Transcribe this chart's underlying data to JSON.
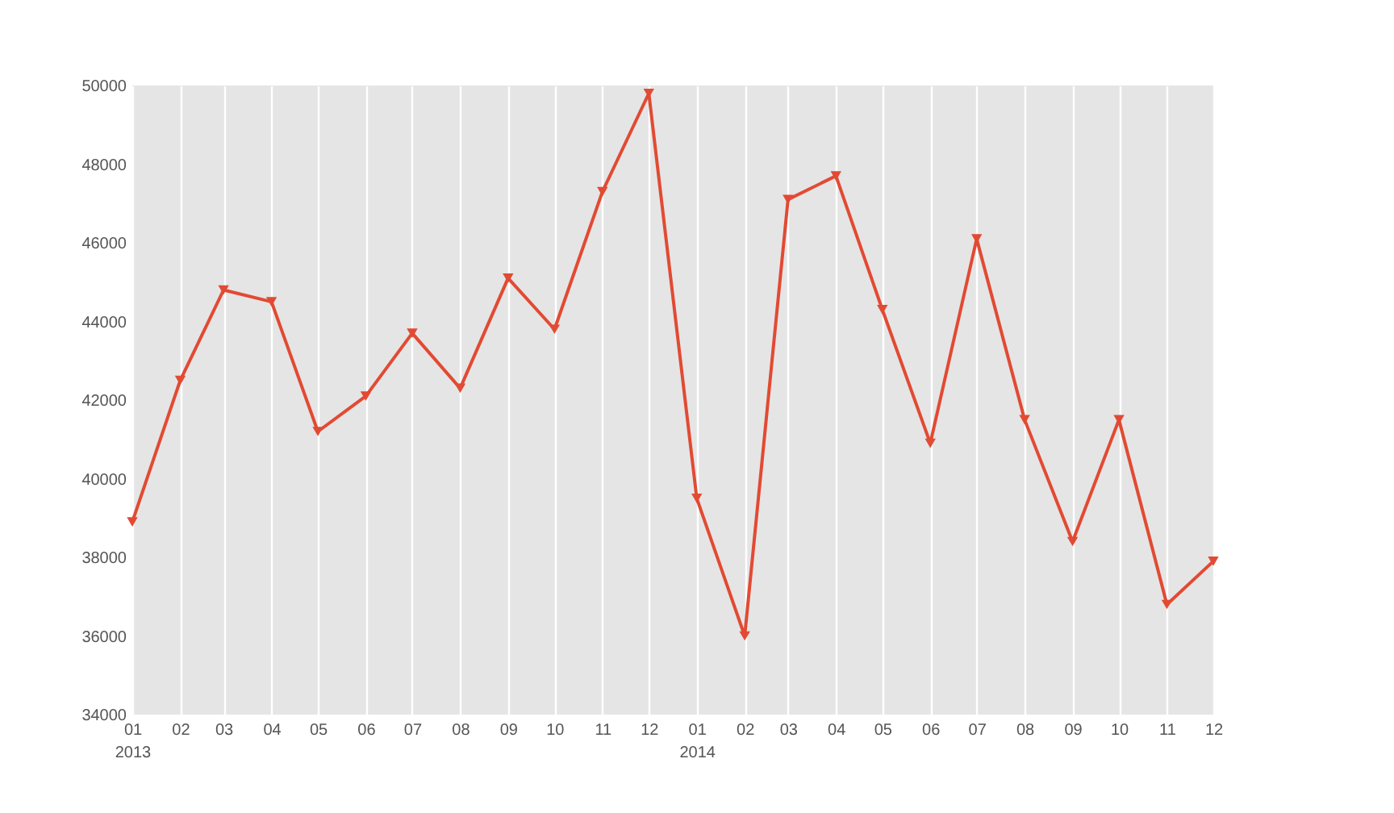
{
  "chart_data": {
    "type": "line",
    "x": [
      "2013-01",
      "2013-02",
      "2013-03",
      "2013-04",
      "2013-05",
      "2013-06",
      "2013-07",
      "2013-08",
      "2013-09",
      "2013-10",
      "2013-11",
      "2013-12",
      "2014-01",
      "2014-02",
      "2014-03",
      "2014-04",
      "2014-05",
      "2014-06",
      "2014-07",
      "2014-08",
      "2014-09",
      "2014-10",
      "2014-11",
      "2014-12"
    ],
    "series": [
      {
        "color": "#e24a33",
        "values": [
          38900,
          42500,
          44800,
          44500,
          41200,
          42100,
          43700,
          42300,
          45100,
          43800,
          47300,
          49800,
          39500,
          36000,
          47100,
          47700,
          44300,
          40900,
          46100,
          41500,
          38400,
          41500,
          36800,
          37900
        ]
      }
    ],
    "xlim": [
      "2013-01",
      "2014-12"
    ],
    "xticks": [
      {
        "value": "2013-01",
        "label": "01\n\n2013"
      },
      {
        "value": "2013-02",
        "label": "02"
      },
      {
        "value": "2013-03",
        "label": "03"
      },
      {
        "value": "2013-04",
        "label": "04"
      },
      {
        "value": "2013-05",
        "label": "05"
      },
      {
        "value": "2013-06",
        "label": "06"
      },
      {
        "value": "2013-07",
        "label": "07"
      },
      {
        "value": "2013-08",
        "label": "08"
      },
      {
        "value": "2013-09",
        "label": "09"
      },
      {
        "value": "2013-10",
        "label": "10"
      },
      {
        "value": "2013-11",
        "label": "11"
      },
      {
        "value": "2013-12",
        "label": "12"
      },
      {
        "value": "2014-01",
        "label": "01\n\n2014"
      },
      {
        "value": "2014-02",
        "label": "02"
      },
      {
        "value": "2014-03",
        "label": "03"
      },
      {
        "value": "2014-04",
        "label": "04"
      },
      {
        "value": "2014-05",
        "label": "05"
      },
      {
        "value": "2014-06",
        "label": "06"
      },
      {
        "value": "2014-07",
        "label": "07"
      },
      {
        "value": "2014-08",
        "label": "08"
      },
      {
        "value": "2014-09",
        "label": "09"
      },
      {
        "value": "2014-10",
        "label": "10"
      },
      {
        "value": "2014-11",
        "label": "11"
      },
      {
        "value": "2014-12",
        "label": "12"
      }
    ],
    "ylim": [
      34000,
      50000
    ],
    "yticks": [
      34000,
      36000,
      38000,
      40000,
      42000,
      44000,
      46000,
      48000,
      50000
    ],
    "grid": "x",
    "marker": "triangle",
    "line_style": "solid"
  }
}
